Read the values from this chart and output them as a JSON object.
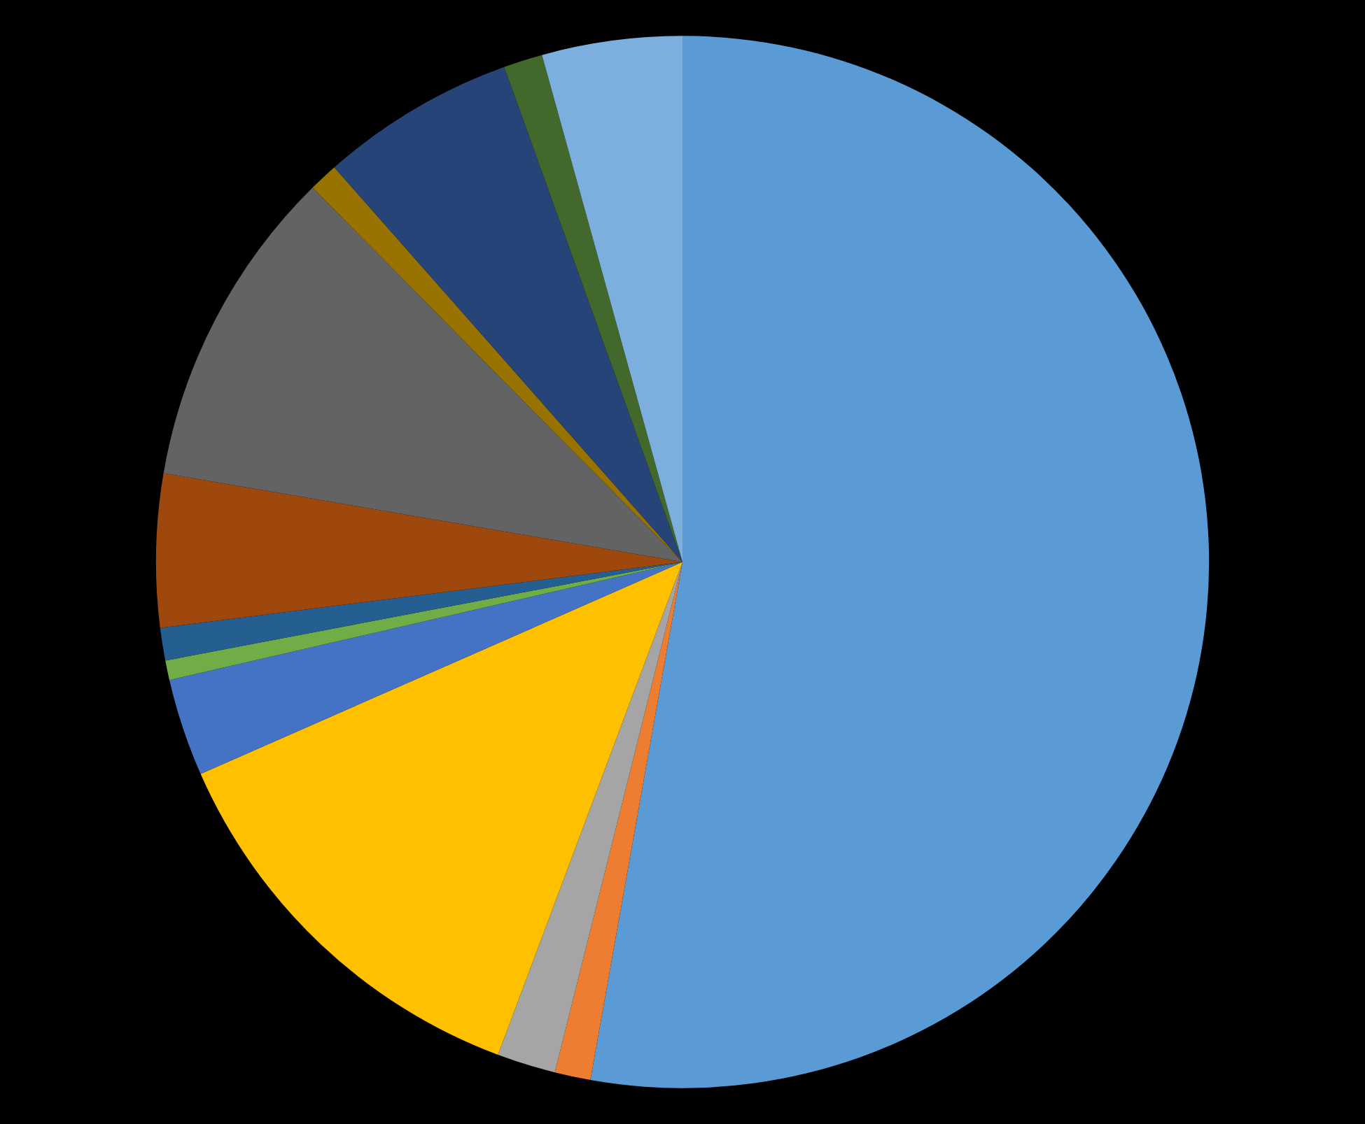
{
  "chart_data": {
    "type": "pie",
    "categories": [
      null,
      null,
      null,
      null,
      null,
      null,
      null,
      null,
      null,
      null,
      null,
      null,
      null
    ],
    "values": [
      52.8,
      1.1,
      1.8,
      12.7,
      3.0,
      0.6,
      1.0,
      4.7,
      9.9,
      0.9,
      6.0,
      1.2,
      4.3
    ],
    "colors": [
      "#5b9bd5",
      "#ed7d31",
      "#a5a5a5",
      "#ffc000",
      "#4472c4",
      "#70ad47",
      "#255e91",
      "#9e480e",
      "#636363",
      "#997300",
      "#264478",
      "#43682b",
      "#7cafdd"
    ]
  }
}
